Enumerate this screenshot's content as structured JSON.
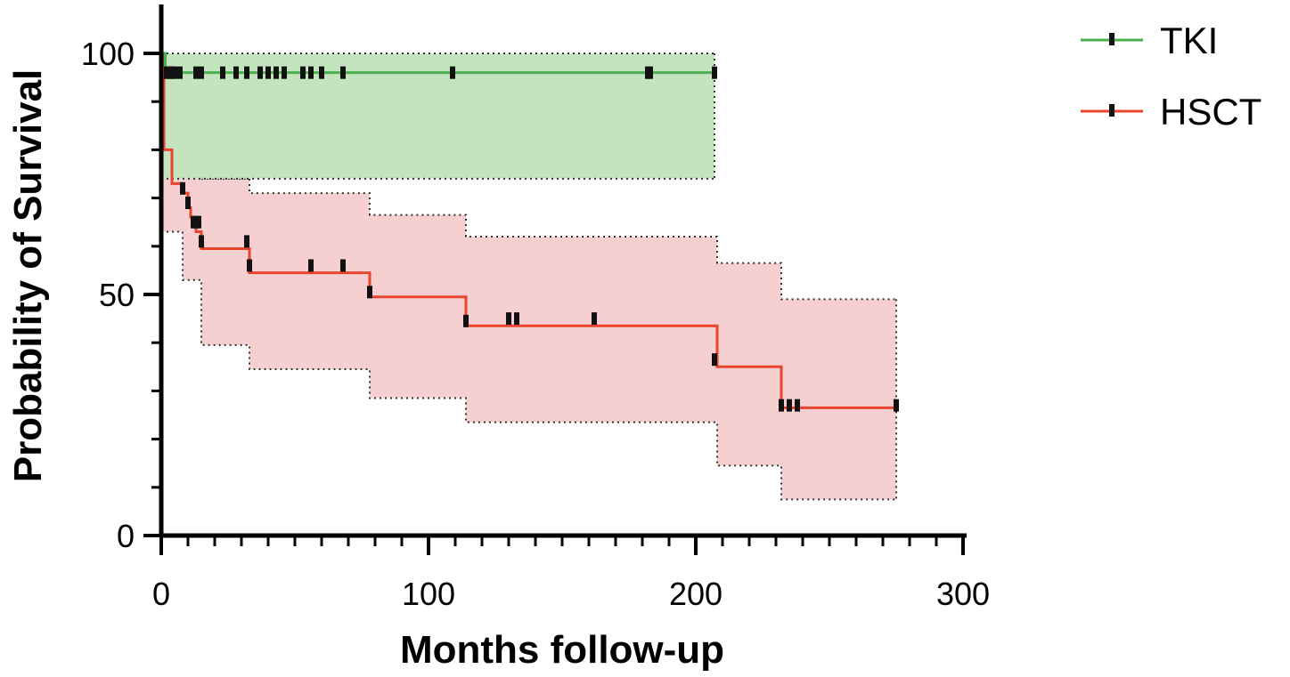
{
  "chart_data": {
    "type": "line",
    "subtype": "kaplan-meier",
    "xlabel": "Months follow-up",
    "ylabel": "Probability of Survival",
    "xlim": [
      0,
      300
    ],
    "ylim": [
      0,
      100
    ],
    "xticks": [
      0,
      100,
      200,
      300
    ],
    "yticks": [
      0,
      50,
      100
    ],
    "x_tick_labels": [
      "0",
      "100",
      "200",
      "300"
    ],
    "y_tick_labels": [
      "0",
      "50",
      "100"
    ],
    "grid": false,
    "legend_position": "top-right",
    "series": [
      {
        "name": "TKI",
        "color": "#4caf50",
        "fill_color": "#c4e3bf",
        "steps": [
          [
            0,
            100
          ],
          [
            1.5,
            96
          ],
          [
            207,
            96
          ]
        ],
        "censored": [
          [
            2,
            96
          ],
          [
            3,
            96
          ],
          [
            4,
            96
          ],
          [
            5,
            96
          ],
          [
            7,
            96
          ],
          [
            13,
            96
          ],
          [
            15,
            96
          ],
          [
            23,
            96
          ],
          [
            28,
            96
          ],
          [
            32,
            96
          ],
          [
            37,
            96
          ],
          [
            40,
            96
          ],
          [
            43,
            96
          ],
          [
            46,
            96
          ],
          [
            53,
            96
          ],
          [
            56,
            96
          ],
          [
            60,
            96
          ],
          [
            68,
            96
          ],
          [
            109,
            96
          ],
          [
            182,
            96
          ],
          [
            183,
            96
          ],
          [
            207,
            96
          ]
        ],
        "ci_upper": [
          [
            0,
            100
          ],
          [
            207,
            100
          ]
        ],
        "ci_lower": [
          [
            0,
            74
          ],
          [
            207,
            74
          ]
        ]
      },
      {
        "name": "HSCT",
        "color": "#e8452c",
        "fill_color": "#f6d0d1",
        "steps": [
          [
            0,
            100
          ],
          [
            1,
            80
          ],
          [
            4,
            73
          ],
          [
            8,
            71
          ],
          [
            10,
            68
          ],
          [
            11,
            66
          ],
          [
            13,
            63
          ],
          [
            15,
            59.5
          ],
          [
            33,
            54.5
          ],
          [
            78,
            49.5
          ],
          [
            114,
            43.5
          ],
          [
            208,
            35
          ],
          [
            232,
            26.5
          ],
          [
            275,
            26.5
          ]
        ],
        "censored": [
          [
            8,
            72
          ],
          [
            10,
            69
          ],
          [
            12,
            65
          ],
          [
            13,
            65
          ],
          [
            14,
            65
          ],
          [
            15,
            61
          ],
          [
            32,
            61
          ],
          [
            33,
            56
          ],
          [
            56,
            56
          ],
          [
            68,
            56
          ],
          [
            78,
            50.5
          ],
          [
            114,
            44.5
          ],
          [
            130,
            45
          ],
          [
            133,
            45
          ],
          [
            162,
            45
          ],
          [
            207,
            36.5
          ],
          [
            232,
            27
          ],
          [
            235,
            27
          ],
          [
            238,
            27
          ],
          [
            275,
            27
          ]
        ],
        "ci_upper": [
          [
            0,
            100
          ],
          [
            15,
            74
          ],
          [
            33,
            71
          ],
          [
            78,
            66.5
          ],
          [
            114,
            62
          ],
          [
            208,
            56.5
          ],
          [
            232,
            49
          ],
          [
            275,
            49
          ]
        ],
        "ci_lower": [
          [
            0,
            63
          ],
          [
            8,
            53
          ],
          [
            15,
            39.5
          ],
          [
            33,
            34.5
          ],
          [
            78,
            28.5
          ],
          [
            114,
            23.5
          ],
          [
            208,
            14.5
          ],
          [
            232,
            7.5
          ],
          [
            275,
            7.5
          ]
        ]
      }
    ]
  }
}
